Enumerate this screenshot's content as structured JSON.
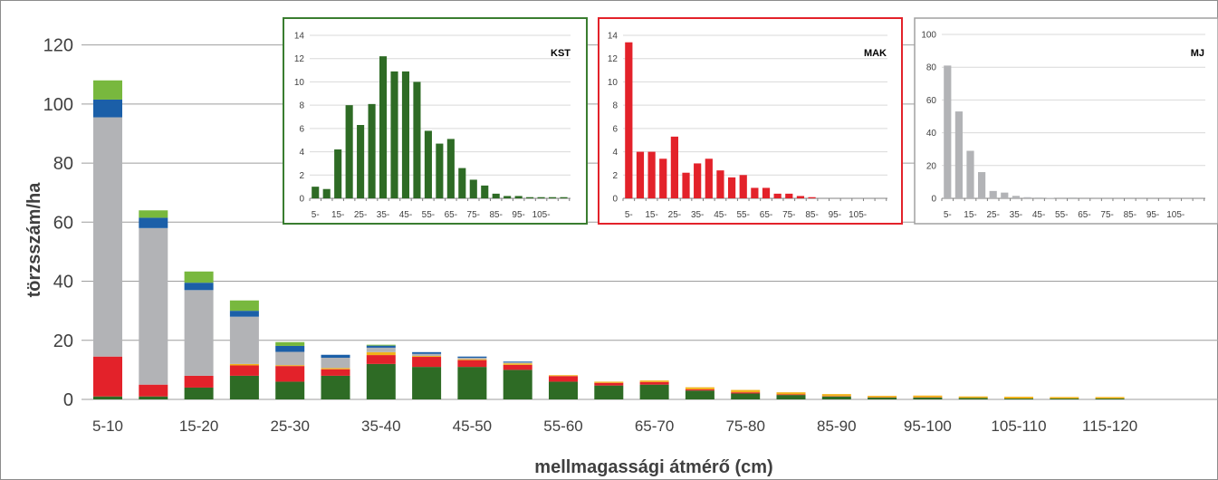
{
  "colors": {
    "kst": "#2e6b25",
    "mak": "#e3222a",
    "yellow": "#f2b21b",
    "mj": "#b2b3b6",
    "blue": "#1b5fa8",
    "lightgreen": "#78b83e",
    "kst_frame": "#3a7d30",
    "mak_frame": "#e3222a",
    "mj_frame": "#a0a0a0"
  },
  "chart_data": [
    {
      "type": "bar",
      "stacked": true,
      "ylabel": "törzsszám/ha",
      "xlabel": "mellmagassági átmérő (cm)",
      "ylim": [
        0,
        130
      ],
      "yticks": [
        0,
        20,
        40,
        60,
        80,
        100,
        120
      ],
      "grid": true,
      "x_tick_labels": [
        "5-10",
        "15-20",
        "25-30",
        "35-40",
        "45-50",
        "55-60",
        "65-70",
        "75-80",
        "85-90",
        "95-100",
        "105-110",
        "115-120"
      ],
      "categories": [
        "5-10",
        "10-15",
        "15-20",
        "20-25",
        "25-30",
        "30-35",
        "35-40",
        "40-45",
        "45-50",
        "50-55",
        "55-60",
        "60-65",
        "65-70",
        "70-75",
        "75-80",
        "80-85",
        "85-90",
        "90-95",
        "95-100",
        "100-105",
        "105-110",
        "110-115",
        "115-120"
      ],
      "series": [
        {
          "color_key": "kst",
          "values": [
            1,
            1,
            4,
            8,
            6,
            8,
            12,
            11,
            11,
            10,
            6,
            4.7,
            5,
            3,
            2,
            1.5,
            1,
            0.6,
            0.6,
            0.5,
            0.3,
            0.3,
            0.3
          ]
        },
        {
          "color_key": "mak",
          "values": [
            13.5,
            4,
            4,
            3.5,
            5.3,
            2.2,
            3,
            3.4,
            2.3,
            1.7,
            1.9,
            0.9,
            0.9,
            0.4,
            0.4,
            0.2,
            0.1,
            0.1,
            0.1,
            0,
            0,
            0,
            0
          ]
        },
        {
          "color_key": "yellow",
          "values": [
            0,
            0,
            0,
            0.5,
            0.3,
            0.4,
            1,
            0.3,
            0.3,
            0.5,
            0.3,
            0.4,
            0.5,
            0.7,
            0.8,
            0.7,
            0.7,
            0.5,
            0.6,
            0.5,
            0.6,
            0.5,
            0.5
          ]
        },
        {
          "color_key": "mj",
          "values": [
            81,
            53,
            29,
            16,
            4.5,
            3.5,
            1.5,
            0.7,
            0.5,
            0.3,
            0,
            0,
            0,
            0,
            0,
            0,
            0,
            0,
            0,
            0,
            0,
            0,
            0
          ]
        },
        {
          "color_key": "blue",
          "values": [
            6,
            3.5,
            2.5,
            2,
            2,
            1,
            0.7,
            0.6,
            0.4,
            0.3,
            0,
            0,
            0,
            0,
            0,
            0,
            0,
            0,
            0,
            0,
            0,
            0,
            0
          ]
        },
        {
          "color_key": "lightgreen",
          "values": [
            6.5,
            2.5,
            3.8,
            3.5,
            1.3,
            0,
            0.3,
            0,
            0,
            0,
            0,
            0,
            0,
            0,
            0,
            0,
            0,
            0,
            0,
            0,
            0,
            0,
            0
          ]
        }
      ]
    },
    {
      "type": "bar",
      "title": "KST",
      "ylim": [
        0,
        14
      ],
      "yticks": [
        0,
        2,
        4,
        6,
        8,
        10,
        12,
        14
      ],
      "x_tick_labels": [
        "5-",
        "15-",
        "25-",
        "35-",
        "45-",
        "55-",
        "65-",
        "75-",
        "85-",
        "95-",
        "105-"
      ],
      "color_key": "kst",
      "values": [
        1,
        0.8,
        4.2,
        8,
        6.3,
        8.1,
        12.2,
        10.9,
        10.9,
        10,
        5.8,
        4.7,
        5.1,
        2.6,
        1.6,
        1.1,
        0.4,
        0.2,
        0.2,
        0.1,
        0.1,
        0.1,
        0.1
      ]
    },
    {
      "type": "bar",
      "title": "MAK",
      "ylim": [
        0,
        14
      ],
      "yticks": [
        0,
        2,
        4,
        6,
        8,
        10,
        12,
        14
      ],
      "x_tick_labels": [
        "5-",
        "15-",
        "25-",
        "35-",
        "45-",
        "55-",
        "65-",
        "75-",
        "85-",
        "95-",
        "105-"
      ],
      "color_key": "mak",
      "values": [
        13.4,
        4,
        4,
        3.4,
        5.3,
        2.2,
        3,
        3.4,
        2.4,
        1.8,
        2,
        0.9,
        0.9,
        0.4,
        0.4,
        0.2,
        0.1,
        0,
        0,
        0,
        0,
        0,
        0
      ]
    },
    {
      "type": "bar",
      "title": "MJ",
      "ylim": [
        0,
        100
      ],
      "yticks": [
        0,
        20,
        40,
        60,
        80,
        100
      ],
      "x_tick_labels": [
        "5-",
        "15-",
        "25-",
        "35-",
        "45-",
        "55-",
        "65-",
        "75-",
        "85-",
        "95-",
        "105-"
      ],
      "color_key": "mj",
      "values": [
        81,
        53,
        29,
        16,
        4.5,
        3.5,
        1.5,
        0.7,
        0.5,
        0.3,
        0,
        0.5,
        0,
        0,
        0,
        0,
        0,
        0,
        0,
        0,
        0,
        0,
        0
      ]
    }
  ]
}
